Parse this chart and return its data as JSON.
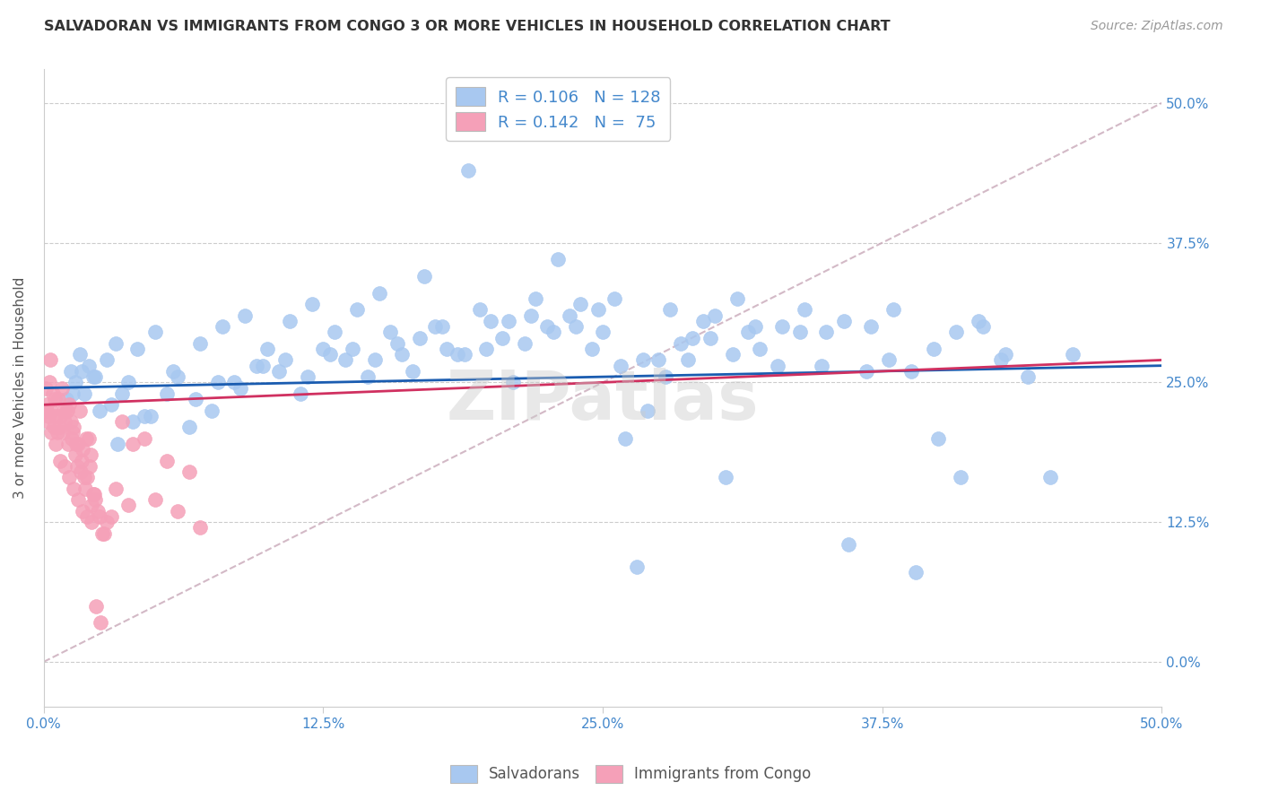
{
  "title": "SALVADORAN VS IMMIGRANTS FROM CONGO 3 OR MORE VEHICLES IN HOUSEHOLD CORRELATION CHART",
  "source": "Source: ZipAtlas.com",
  "ylabel": "3 or more Vehicles in Household",
  "ytick_values": [
    0.0,
    12.5,
    25.0,
    37.5,
    50.0
  ],
  "ytick_labels": [
    "0.0%",
    "12.5%",
    "25.0%",
    "37.5%",
    "50.0%"
  ],
  "xtick_values": [
    0.0,
    12.5,
    25.0,
    37.5,
    50.0
  ],
  "xtick_labels": [
    "0.0%",
    "12.5%",
    "25.0%",
    "37.5%",
    "50.0%"
  ],
  "xlim": [
    0.0,
    50.0
  ],
  "ylim": [
    -4.0,
    53.0
  ],
  "legend_blue_R": "R = 0.106",
  "legend_blue_N": "N = 128",
  "legend_pink_R": "R = 0.142",
  "legend_pink_N": "N =  75",
  "blue_color": "#a8c8f0",
  "pink_color": "#f5a0b8",
  "blue_line_color": "#1a5cb0",
  "pink_line_color": "#d03060",
  "dashed_line_color": "#c8a8b8",
  "watermark": "ZIPatlas",
  "blue_scatter_x": [
    1.0,
    1.2,
    1.4,
    1.6,
    1.8,
    2.0,
    2.2,
    2.5,
    2.8,
    3.0,
    3.2,
    3.5,
    3.8,
    4.0,
    4.2,
    4.5,
    5.0,
    5.5,
    6.0,
    6.5,
    7.0,
    7.5,
    8.0,
    8.5,
    9.0,
    9.5,
    10.0,
    10.5,
    11.0,
    11.5,
    12.0,
    12.5,
    13.0,
    13.5,
    14.0,
    14.5,
    15.0,
    15.5,
    16.0,
    16.5,
    17.0,
    17.5,
    18.0,
    18.5,
    19.0,
    19.5,
    20.0,
    20.5,
    21.0,
    21.5,
    22.0,
    22.5,
    23.0,
    23.5,
    24.0,
    24.5,
    25.0,
    25.5,
    26.0,
    26.5,
    27.0,
    27.5,
    28.0,
    28.5,
    29.0,
    29.5,
    30.0,
    30.5,
    31.0,
    31.5,
    32.0,
    33.0,
    34.0,
    35.0,
    36.0,
    37.0,
    38.0,
    39.0,
    40.0,
    41.0,
    42.0,
    43.0,
    44.0,
    45.0,
    46.0,
    1.3,
    1.7,
    2.3,
    3.3,
    4.8,
    5.8,
    6.8,
    7.8,
    8.8,
    9.8,
    10.8,
    11.8,
    12.8,
    13.8,
    14.8,
    15.8,
    16.8,
    17.8,
    18.8,
    19.8,
    20.8,
    21.8,
    22.8,
    23.8,
    24.8,
    25.8,
    26.8,
    27.8,
    28.8,
    29.8,
    30.8,
    31.8,
    32.8,
    33.8,
    34.8,
    35.8,
    36.8,
    37.8,
    38.8,
    39.8,
    40.8,
    41.8,
    42.8
  ],
  "blue_scatter_y": [
    23.5,
    26.0,
    25.0,
    27.5,
    24.0,
    26.5,
    25.5,
    22.5,
    27.0,
    23.0,
    28.5,
    24.0,
    25.0,
    21.5,
    28.0,
    22.0,
    29.5,
    24.0,
    25.5,
    21.0,
    28.5,
    22.5,
    30.0,
    25.0,
    31.0,
    26.5,
    28.0,
    26.0,
    30.5,
    24.0,
    32.0,
    28.0,
    29.5,
    27.0,
    31.5,
    25.5,
    33.0,
    29.5,
    27.5,
    26.0,
    34.5,
    30.0,
    28.0,
    27.5,
    44.0,
    31.5,
    30.5,
    29.0,
    25.0,
    28.5,
    32.5,
    30.0,
    36.0,
    31.0,
    32.0,
    28.0,
    29.5,
    32.5,
    20.0,
    8.5,
    22.5,
    27.0,
    31.5,
    28.5,
    29.0,
    30.5,
    31.0,
    16.5,
    32.5,
    29.5,
    28.0,
    30.0,
    31.5,
    29.5,
    10.5,
    30.0,
    31.5,
    8.0,
    20.0,
    16.5,
    30.0,
    27.5,
    25.5,
    16.5,
    27.5,
    24.0,
    26.0,
    25.5,
    19.5,
    22.0,
    26.0,
    23.5,
    25.0,
    24.5,
    26.5,
    27.0,
    25.5,
    27.5,
    28.0,
    27.0,
    28.5,
    29.0,
    30.0,
    27.5,
    28.0,
    30.5,
    31.0,
    29.5,
    30.0,
    31.5,
    26.5,
    27.0,
    25.5,
    27.0,
    29.0,
    27.5,
    30.0,
    26.5,
    29.5,
    26.5,
    30.5,
    26.0,
    27.0,
    26.0,
    28.0,
    29.5,
    30.5,
    27.0
  ],
  "pink_scatter_x": [
    0.1,
    0.15,
    0.2,
    0.25,
    0.3,
    0.35,
    0.4,
    0.45,
    0.5,
    0.55,
    0.6,
    0.65,
    0.7,
    0.75,
    0.8,
    0.85,
    0.9,
    0.95,
    1.0,
    1.05,
    1.1,
    1.15,
    1.2,
    1.25,
    1.3,
    1.35,
    1.4,
    1.45,
    1.5,
    1.55,
    1.6,
    1.65,
    1.7,
    1.75,
    1.8,
    1.85,
    1.9,
    1.95,
    2.0,
    2.05,
    2.1,
    2.15,
    2.2,
    2.25,
    2.3,
    2.4,
    2.5,
    2.6,
    2.7,
    2.8,
    3.0,
    3.2,
    3.5,
    3.8,
    4.0,
    4.5,
    5.0,
    5.5,
    6.0,
    6.5,
    7.0,
    0.12,
    0.22,
    0.32,
    0.52,
    0.72,
    0.92,
    1.12,
    1.32,
    1.52,
    1.72,
    1.92,
    2.12,
    2.32,
    2.52
  ],
  "pink_scatter_y": [
    24.5,
    23.0,
    22.0,
    25.0,
    27.0,
    22.5,
    24.0,
    21.0,
    23.5,
    22.0,
    20.5,
    23.5,
    21.0,
    22.0,
    24.5,
    20.5,
    22.5,
    21.5,
    22.5,
    22.5,
    19.5,
    23.0,
    21.5,
    20.0,
    20.5,
    21.0,
    18.5,
    19.5,
    17.5,
    19.5,
    22.5,
    17.0,
    18.0,
    19.0,
    16.5,
    15.5,
    20.0,
    16.5,
    20.0,
    17.5,
    18.5,
    14.0,
    15.0,
    15.0,
    14.5,
    13.5,
    13.0,
    11.5,
    11.5,
    12.5,
    13.0,
    15.5,
    21.5,
    14.0,
    19.5,
    20.0,
    14.5,
    18.0,
    13.5,
    17.0,
    12.0,
    22.5,
    21.5,
    20.5,
    19.5,
    18.0,
    17.5,
    16.5,
    15.5,
    14.5,
    13.5,
    13.0,
    12.5,
    5.0,
    3.5
  ]
}
